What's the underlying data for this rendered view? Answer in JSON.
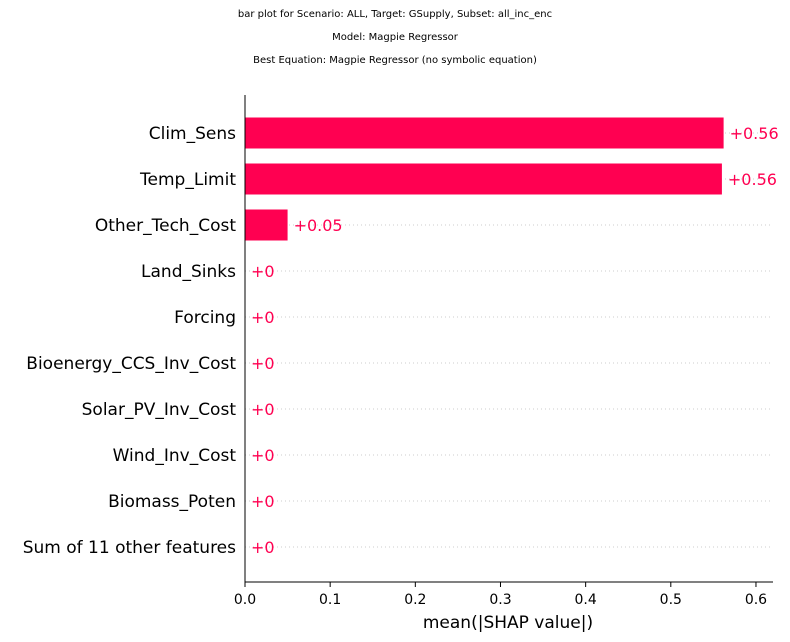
{
  "title_lines": [
    "bar plot for Scenario: ALL, Target: GSupply, Subset: all_inc_enc",
    "Model: Magpie Regressor",
    "Best Equation: Magpie Regressor (no symbolic equation)"
  ],
  "colors": {
    "bar": "#ff0051",
    "label": "#ff0051",
    "axis": "#000000",
    "grid": "#cccccc"
  },
  "chart_data": {
    "type": "bar",
    "orientation": "horizontal",
    "categories": [
      "Clim_Sens",
      "Temp_Limit",
      "Other_Tech_Cost",
      "Land_Sinks",
      "Forcing",
      "Bioenergy_CCS_Inv_Cost",
      "Solar_PV_Inv_Cost",
      "Wind_Inv_Cost",
      "Biomass_Poten",
      "Sum of 11 other features"
    ],
    "values": [
      0.562,
      0.56,
      0.05,
      0,
      0,
      0,
      0,
      0,
      0,
      0
    ],
    "value_labels": [
      "+0.56",
      "+0.56",
      "+0.05",
      "+0",
      "+0",
      "+0",
      "+0",
      "+0",
      "+0",
      "+0"
    ],
    "xlabel": "mean(|SHAP value|)",
    "ylabel": "",
    "xlim": [
      0,
      0.62
    ],
    "xticks": [
      0,
      0.1,
      0.2,
      0.3,
      0.4,
      0.5,
      0.6
    ],
    "xtick_labels": [
      "0.0",
      "0.1",
      "0.2",
      "0.3",
      "0.4",
      "0.5",
      "0.6"
    ]
  }
}
